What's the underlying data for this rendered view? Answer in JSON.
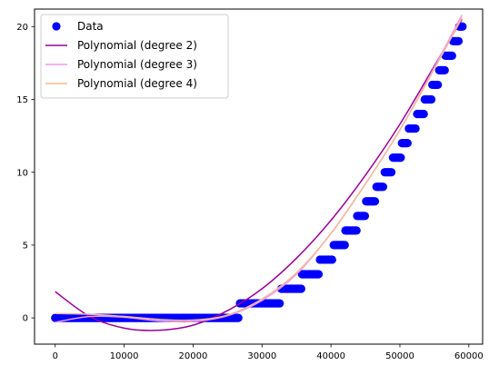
{
  "chart_data": {
    "type": "scatter",
    "title": "",
    "xlabel": "",
    "ylabel": "",
    "xlim": [
      -3000,
      62000
    ],
    "ylim": [
      -1.8,
      21.2
    ],
    "grid": false,
    "legend_position": "upper-left",
    "x_ticks": [
      0,
      10000,
      20000,
      30000,
      40000,
      50000,
      60000
    ],
    "y_ticks": [
      0,
      5,
      10,
      15,
      20
    ],
    "x_tick_labels": [
      "0",
      "10000",
      "20000",
      "30000",
      "40000",
      "50000",
      "60000"
    ],
    "y_tick_labels": [
      "0",
      "5",
      "10",
      "15",
      "20"
    ],
    "scatter": {
      "name": "Data",
      "color": "#0000ff",
      "steps": [
        {
          "y": 0,
          "x_start": 0,
          "x_end": 26600
        },
        {
          "y": 1,
          "x_start": 26800,
          "x_end": 32700
        },
        {
          "y": 2,
          "x_start": 32800,
          "x_end": 35700
        },
        {
          "y": 3,
          "x_start": 35800,
          "x_end": 38300
        },
        {
          "y": 4,
          "x_start": 38400,
          "x_end": 40300
        },
        {
          "y": 5,
          "x_start": 40400,
          "x_end": 42000
        },
        {
          "y": 6,
          "x_start": 42100,
          "x_end": 43700
        },
        {
          "y": 7,
          "x_start": 43800,
          "x_end": 45000
        },
        {
          "y": 8,
          "x_start": 45100,
          "x_end": 46500
        },
        {
          "y": 9,
          "x_start": 46600,
          "x_end": 47700
        },
        {
          "y": 10,
          "x_start": 47800,
          "x_end": 48900
        },
        {
          "y": 11,
          "x_start": 49000,
          "x_end": 50200
        },
        {
          "y": 12,
          "x_start": 50300,
          "x_end": 51200
        },
        {
          "y": 13,
          "x_start": 51300,
          "x_end": 52400
        },
        {
          "y": 14,
          "x_start": 52500,
          "x_end": 53500
        },
        {
          "y": 15,
          "x_start": 53600,
          "x_end": 54600
        },
        {
          "y": 16,
          "x_start": 54700,
          "x_end": 55600
        },
        {
          "y": 17,
          "x_start": 55700,
          "x_end": 56500
        },
        {
          "y": 18,
          "x_start": 56600,
          "x_end": 57600
        },
        {
          "y": 19,
          "x_start": 57700,
          "x_end": 58500
        },
        {
          "y": 20,
          "x_start": 58600,
          "x_end": 59200
        }
      ]
    },
    "series": [
      {
        "name": "Polynomial (degree 2)",
        "color": "#990099",
        "x": [
          0,
          5000,
          10000,
          15000,
          20000,
          25000,
          30000,
          35000,
          40000,
          45000,
          50000,
          55000,
          59000
        ],
        "y": [
          1.8,
          0.1,
          -0.7,
          -0.85,
          -0.5,
          0.5,
          2.0,
          4.1,
          6.7,
          9.8,
          13.3,
          17.3,
          20.5
        ]
      },
      {
        "name": "Polynomial (degree 3)",
        "color": "#ee99ee",
        "x": [
          0,
          5000,
          10000,
          15000,
          20000,
          25000,
          30000,
          35000,
          40000,
          45000,
          50000,
          55000,
          59000
        ],
        "y": [
          -0.3,
          0.1,
          0.05,
          -0.2,
          -0.25,
          0.15,
          1.2,
          3.0,
          5.8,
          9.2,
          12.9,
          17.2,
          20.8
        ]
      },
      {
        "name": "Polynomial (degree 4)",
        "color": "#f0b898",
        "x": [
          0,
          5000,
          10000,
          15000,
          20000,
          25000,
          30000,
          35000,
          40000,
          45000,
          50000,
          55000,
          59000
        ],
        "y": [
          0.3,
          0.25,
          0.1,
          -0.1,
          -0.15,
          0.2,
          1.3,
          3.1,
          5.8,
          9.2,
          12.9,
          17.1,
          20.6
        ]
      }
    ]
  }
}
